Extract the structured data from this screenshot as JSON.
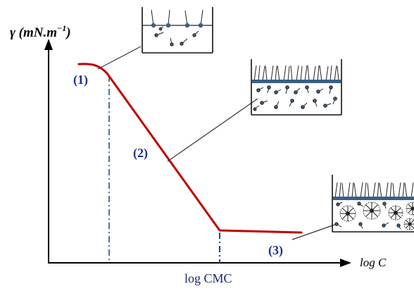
{
  "colors": {
    "curve": "#c00000",
    "label": "#1f2f8f",
    "axis": "#000000",
    "box": "#111111",
    "liquid_dot": "#3a5f85"
  },
  "axes": {
    "y_label": "γ (mN.m",
    "y_label_sup": "−1",
    "y_label_close": ")",
    "x_label": "log C",
    "cmc_label": "log CMC"
  },
  "regions": [
    {
      "label": "(1)"
    },
    {
      "label": "(2)"
    },
    {
      "label": "(3)"
    }
  ]
}
